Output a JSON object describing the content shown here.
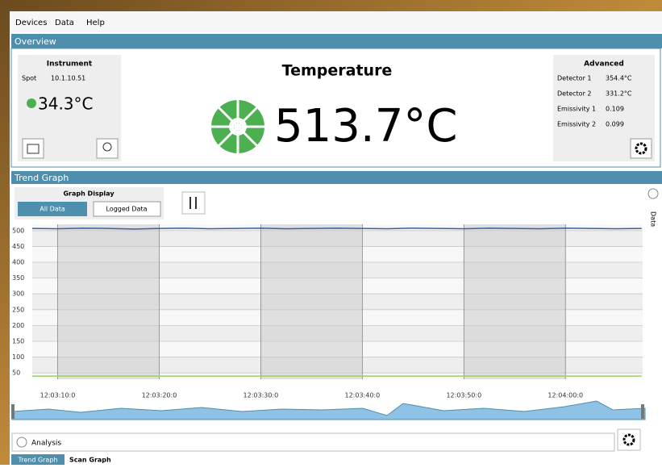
{
  "menu": [
    "Devices",
    "Data",
    "Help"
  ],
  "overview": {
    "title": "Overview",
    "instrument": {
      "title": "Instrument",
      "spot_label": "Spot",
      "spot_value": "10.1.10.51",
      "temperature": "34.3°C"
    },
    "main": {
      "title": "Temperature",
      "value": "513.7°C"
    },
    "advanced": {
      "title": "Advanced",
      "rows": [
        [
          "Detector 1",
          "354.4°C"
        ],
        [
          "Detector 2",
          "331.2°C"
        ],
        [
          "Emissivity 1",
          "0.109"
        ],
        [
          "Emissivity 2",
          "0.099"
        ]
      ]
    }
  },
  "trend": {
    "title": "Trend Graph",
    "graph_display": {
      "title": "Graph Display",
      "buttons": [
        "All Data",
        "Logged Data"
      ]
    },
    "side_tab": "Data"
  },
  "chart_data": {
    "type": "line",
    "x": [
      7.5,
      10,
      12.5,
      15,
      17.5,
      20,
      22.5,
      25,
      27.5,
      30,
      32.5,
      35,
      37.5,
      40,
      42.5,
      45,
      47.5,
      50,
      52.5,
      55,
      57.5,
      60,
      62.5,
      65,
      67.5
    ],
    "series": [
      {
        "color": "#3a5f9a",
        "values": [
          507,
          506,
          508,
          507,
          505,
          507,
          508,
          506,
          507,
          508,
          506,
          507,
          508,
          507,
          506,
          508,
          507,
          506,
          508,
          507,
          506,
          508,
          507,
          506,
          507
        ]
      },
      {
        "color": "#9bcf6a",
        "values": [
          40,
          40,
          40,
          40,
          40,
          40,
          40,
          40,
          40,
          40,
          40,
          40,
          40,
          40,
          40,
          40,
          40,
          40,
          40,
          40,
          40,
          40,
          40,
          40,
          40
        ]
      }
    ],
    "xlim": [
      7.5,
      67.6
    ],
    "xticks": [
      {
        "value": 10,
        "label": "12:03:10:0"
      },
      {
        "value": 20,
        "label": "12:03:20:0"
      },
      {
        "value": 30,
        "label": "12:03:30:0"
      },
      {
        "value": 40,
        "label": "12:03:40:0"
      },
      {
        "value": 50,
        "label": "12:03:50:0"
      },
      {
        "value": 60,
        "label": "12:04:00:0"
      }
    ],
    "ylim": [
      30,
      520
    ],
    "yticks": [
      50,
      100,
      150,
      200,
      250,
      300,
      350,
      400,
      450,
      500
    ],
    "grid": true
  },
  "footer": {
    "analysis": "Analysis",
    "tabs": [
      "Trend Graph",
      "Scan Graph"
    ]
  }
}
